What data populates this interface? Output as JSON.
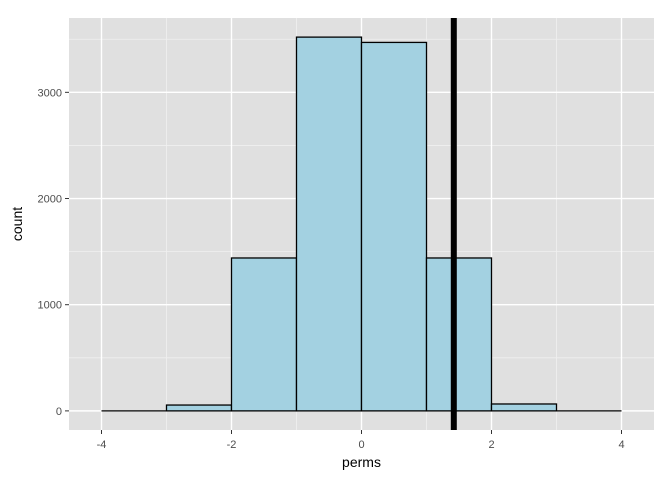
{
  "chart_data": {
    "type": "bar",
    "subtype": "histogram",
    "xlabel": "perms",
    "ylabel": "count",
    "xlim": [
      -4.5,
      4.5
    ],
    "ylim": [
      -180,
      3700
    ],
    "x_ticks": [
      -4,
      -2,
      0,
      2,
      4
    ],
    "x_tick_labels": [
      "-4",
      "-2",
      "0",
      "2",
      "4"
    ],
    "y_ticks": [
      0,
      1000,
      2000,
      3000
    ],
    "y_tick_labels": [
      "0",
      "1000",
      "2000",
      "3000"
    ],
    "grid": true,
    "bins": [
      {
        "x0": -4,
        "x1": -3,
        "count": 0
      },
      {
        "x0": -3,
        "x1": -2,
        "count": 55
      },
      {
        "x0": -2,
        "x1": -1,
        "count": 1440
      },
      {
        "x0": -1,
        "x1": 0,
        "count": 3520
      },
      {
        "x0": 0,
        "x1": 1,
        "count": 3470
      },
      {
        "x0": 1,
        "x1": 2,
        "count": 1440
      },
      {
        "x0": 2,
        "x1": 3,
        "count": 65
      },
      {
        "x0": 3,
        "x1": 4,
        "count": 0
      }
    ],
    "vline": {
      "x": 1.42,
      "color": "#000000"
    },
    "colors": {
      "panel_background": "#e0e0e0",
      "grid_major": "#ffffff",
      "grid_minor": "#f0f0f0",
      "bar_fill": "#a3d1e1",
      "bar_outline": "#000000"
    }
  }
}
